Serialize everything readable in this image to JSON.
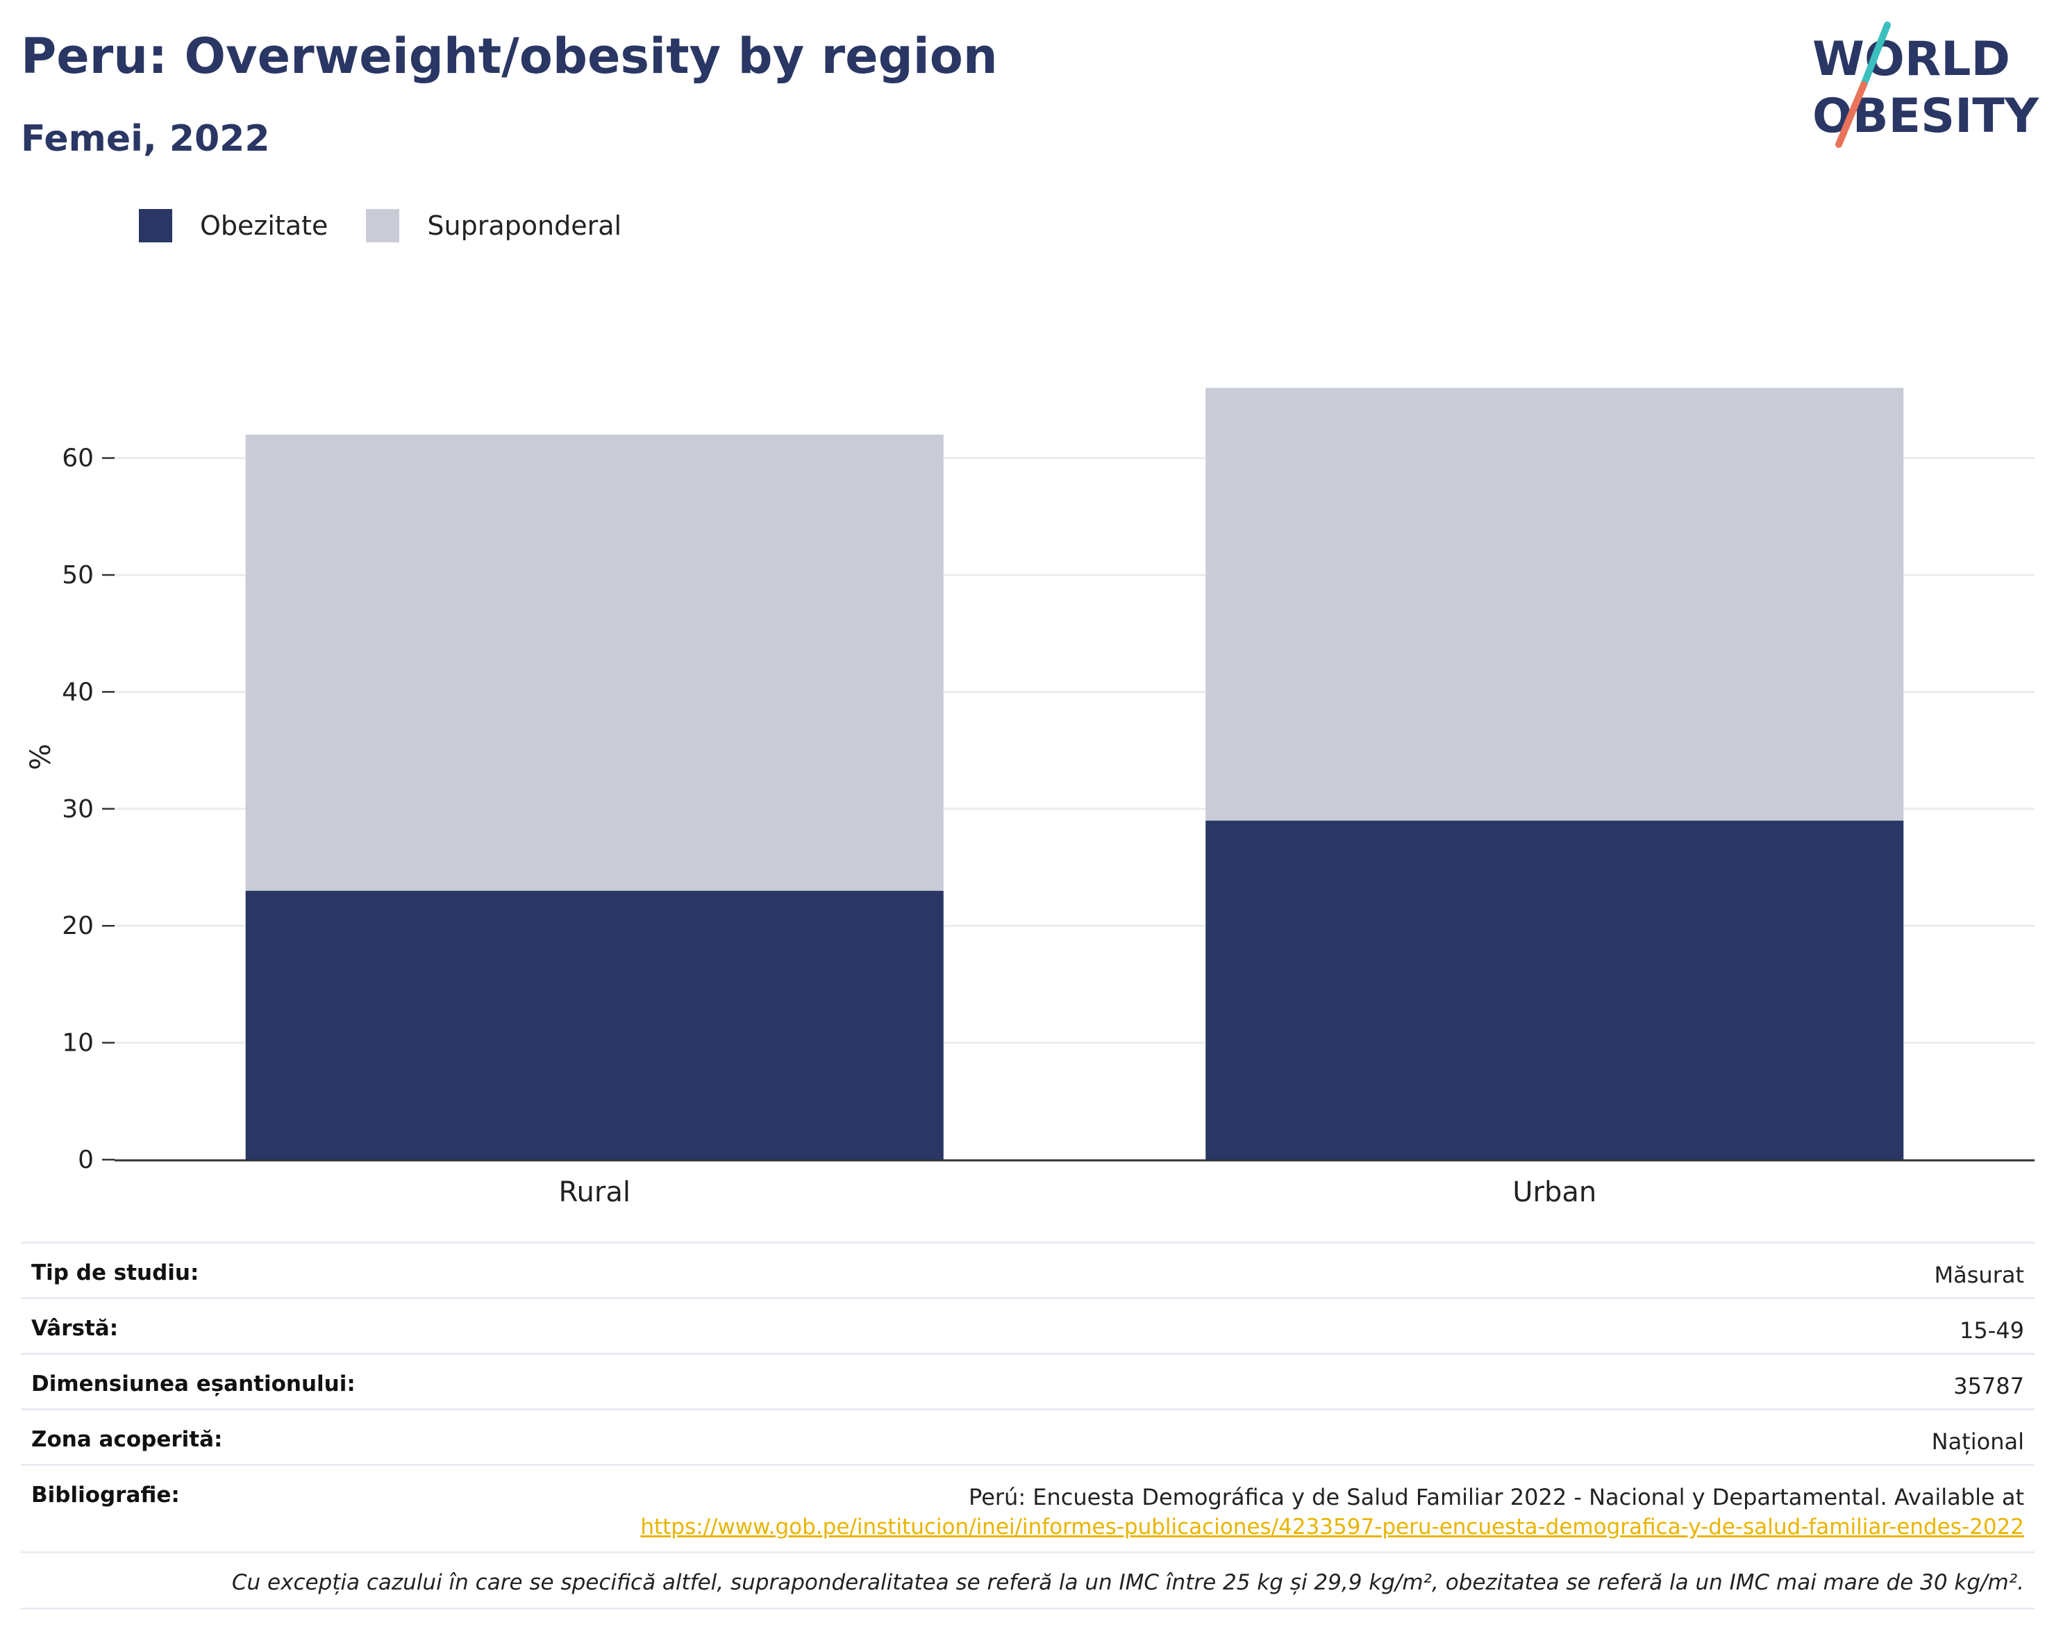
{
  "header": {
    "title": "Peru: Overweight/obesity by region",
    "subtitle": "Femei, 2022",
    "logo_line1": "WORLD",
    "logo_line2": "OBESITY"
  },
  "colors": {
    "obesity": "#2a3764",
    "overweight": "#c9ccd7",
    "accent_teal": "#3bbfbf",
    "accent_coral": "#e8735a"
  },
  "legend": [
    {
      "label": "Obezitate",
      "color": "#2a3764"
    },
    {
      "label": "Supraponderal",
      "color": "#c9ccd7"
    }
  ],
  "chart_data": {
    "type": "bar",
    "stacked": true,
    "categories": [
      "Rural",
      "Urban"
    ],
    "series": [
      {
        "name": "Obezitate",
        "values": [
          23,
          29
        ]
      },
      {
        "name": "Supraponderal",
        "values": [
          39,
          37
        ]
      }
    ],
    "ylabel": "%",
    "yticks": [
      0,
      10,
      20,
      30,
      40,
      50,
      60
    ],
    "ylim": [
      0,
      70
    ],
    "grid": true,
    "legend_position": "top-left"
  },
  "info": {
    "rows": [
      {
        "label": "Tip de studiu:",
        "value": "Măsurat"
      },
      {
        "label": "Vârstă:",
        "value": "15-49"
      },
      {
        "label": "Dimensiunea eșantionului:",
        "value": "35787"
      },
      {
        "label": "Zona acoperită:",
        "value": "Național"
      }
    ],
    "bibliography": {
      "label": "Bibliografie:",
      "text": "Perú: Encuesta Demográfica y de Salud Familiar 2022 - Nacional y Departamental. Available at",
      "link": "https://www.gob.pe/institucion/inei/informes-publicaciones/4233597-peru-encuesta-demografica-y-de-salud-familiar-endes-2022"
    },
    "note": "Cu excepția cazului în care se specifică altfel, supraponderalitatea se referă la un IMC între 25 kg și 29,9 kg/m², obezitatea se referă la un IMC mai mare de 30 kg/m²."
  }
}
